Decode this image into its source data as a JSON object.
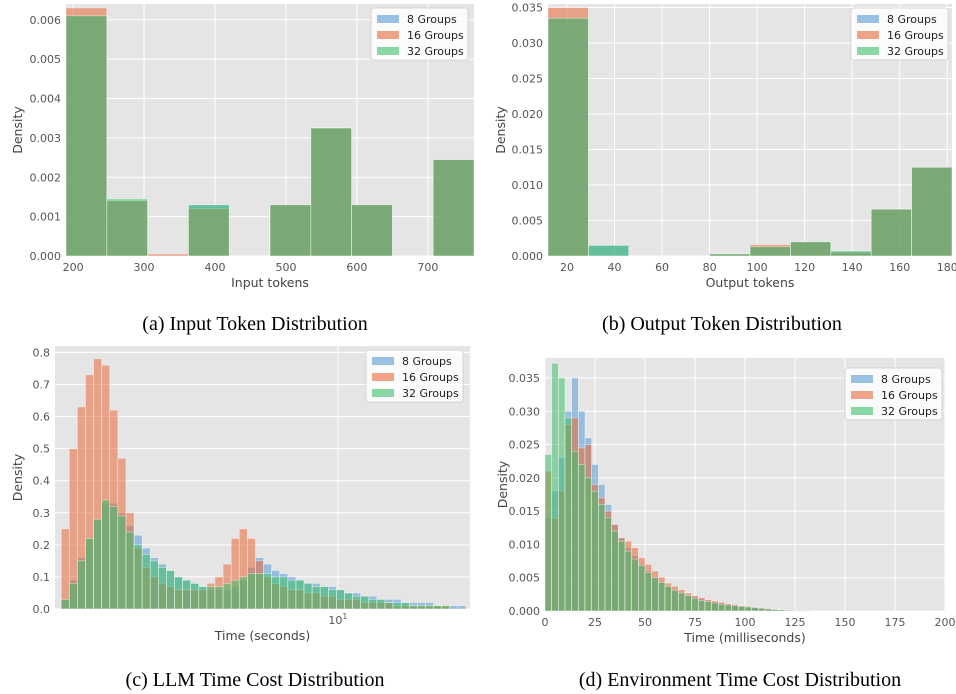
{
  "colors": {
    "panel_bg": "#e5e5e5",
    "grid": "#ffffff",
    "blue": "#5a9bd5",
    "orange": "#e8693a",
    "green": "#3fbf6c"
  },
  "legend": [
    "8 Groups",
    "16 Groups",
    "32 Groups"
  ],
  "chart_data": [
    {
      "type": "bar",
      "caption": "(a) Input Token Distribution",
      "xlabel": "Input tokens",
      "ylabel": "Density",
      "xlim": [
        190,
        765
      ],
      "ylim": [
        0,
        0.0064
      ],
      "xticks": [
        200,
        300,
        400,
        500,
        600,
        700
      ],
      "xtick_labels": [
        "200",
        "300",
        "400",
        "500",
        "600",
        "700"
      ],
      "yticks": [
        0,
        0.001,
        0.002,
        0.003,
        0.004,
        0.005,
        0.006
      ],
      "ytick_labels": [
        "0.000",
        "0.001",
        "0.002",
        "0.003",
        "0.004",
        "0.005",
        "0.006"
      ],
      "bins": [
        [
          190,
          247.5
        ],
        [
          247.5,
          305
        ],
        [
          305,
          362.5
        ],
        [
          362.5,
          420
        ],
        [
          420,
          477.5
        ],
        [
          477.5,
          535
        ],
        [
          535,
          592.5
        ],
        [
          592.5,
          650
        ],
        [
          650,
          707.5
        ],
        [
          707.5,
          765
        ]
      ],
      "series": [
        {
          "name": "8 Groups",
          "color": "blue",
          "values": [
            0.0061,
            0.0014,
            0.0,
            0.0013,
            0.0,
            0.0013,
            0.00325,
            0.0013,
            0.0,
            0.00245
          ]
        },
        {
          "name": "16 Groups",
          "color": "orange",
          "values": [
            0.0063,
            0.0014,
            5e-05,
            0.0012,
            0.0,
            0.0013,
            0.00325,
            0.0013,
            0.0,
            0.00245
          ]
        },
        {
          "name": "32 Groups",
          "color": "green",
          "values": [
            0.0061,
            0.00145,
            0.0,
            0.0013,
            0.0,
            0.0013,
            0.00325,
            0.0013,
            0.0,
            0.00245
          ]
        }
      ]
    },
    {
      "type": "bar",
      "caption": "(b) Output Token Distribution",
      "xlabel": "Output tokens",
      "ylabel": "Density",
      "xlim": [
        12,
        182
      ],
      "ylim": [
        0,
        0.0355
      ],
      "xticks": [
        20,
        40,
        60,
        80,
        100,
        120,
        140,
        160,
        180
      ],
      "xtick_labels": [
        "20",
        "40",
        "60",
        "80",
        "100",
        "120",
        "140",
        "160",
        "180"
      ],
      "yticks": [
        0,
        0.005,
        0.01,
        0.015,
        0.02,
        0.025,
        0.03,
        0.035
      ],
      "ytick_labels": [
        "0.000",
        "0.005",
        "0.010",
        "0.015",
        "0.020",
        "0.025",
        "0.030",
        "0.035"
      ],
      "bins": [
        [
          12,
          29
        ],
        [
          29,
          46
        ],
        [
          46,
          63
        ],
        [
          63,
          80
        ],
        [
          80,
          97
        ],
        [
          97,
          114
        ],
        [
          114,
          131
        ],
        [
          131,
          148
        ],
        [
          148,
          165
        ],
        [
          165,
          182
        ]
      ],
      "series": [
        {
          "name": "8 Groups",
          "color": "blue",
          "values": [
            0.0335,
            0.0015,
            0.0,
            0.0,
            0.0003,
            0.0013,
            0.002,
            0.0007,
            0.0066,
            0.0125
          ]
        },
        {
          "name": "16 Groups",
          "color": "orange",
          "values": [
            0.035,
            0.0,
            0.0,
            0.0,
            0.0003,
            0.0016,
            0.002,
            0.0005,
            0.0066,
            0.0125
          ]
        },
        {
          "name": "32 Groups",
          "color": "green",
          "values": [
            0.0335,
            0.0015,
            0.0,
            0.0,
            0.0003,
            0.0013,
            0.002,
            0.0007,
            0.0066,
            0.0125
          ]
        }
      ]
    },
    {
      "type": "bar",
      "caption": "(c) LLM Time Cost Distribution",
      "xlabel": "Time (seconds)",
      "ylabel": "Density",
      "xscale": "log",
      "xlim": [
        0.95,
        30
      ],
      "ylim": [
        0,
        0.82
      ],
      "xticks": [
        10
      ],
      "xtick_labels": [
        "10"
      ],
      "yticks": [
        0,
        0.1,
        0.2,
        0.3,
        0.4,
        0.5,
        0.6,
        0.7,
        0.8
      ],
      "ytick_labels": [
        "0.0",
        "0.1",
        "0.2",
        "0.3",
        "0.4",
        "0.5",
        "0.6",
        "0.7",
        "0.8"
      ],
      "nbins": 50,
      "bin_range": [
        1.0,
        29.0
      ],
      "series": [
        {
          "name": "8 Groups",
          "color": "blue",
          "values": [
            0.03,
            0.09,
            0.16,
            0.22,
            0.28,
            0.33,
            0.33,
            0.3,
            0.26,
            0.23,
            0.19,
            0.16,
            0.14,
            0.12,
            0.1,
            0.09,
            0.08,
            0.07,
            0.06,
            0.06,
            0.06,
            0.07,
            0.09,
            0.13,
            0.16,
            0.14,
            0.12,
            0.11,
            0.1,
            0.09,
            0.08,
            0.08,
            0.07,
            0.07,
            0.06,
            0.05,
            0.05,
            0.04,
            0.04,
            0.03,
            0.03,
            0.03,
            0.02,
            0.02,
            0.02,
            0.02,
            0.01,
            0.01,
            0.01,
            0.01
          ]
        },
        {
          "name": "16 Groups",
          "color": "orange",
          "values": [
            0.25,
            0.5,
            0.63,
            0.73,
            0.78,
            0.76,
            0.62,
            0.47,
            0.3,
            0.19,
            0.13,
            0.1,
            0.08,
            0.07,
            0.06,
            0.06,
            0.06,
            0.06,
            0.08,
            0.1,
            0.14,
            0.22,
            0.25,
            0.22,
            0.15,
            0.1,
            0.08,
            0.07,
            0.06,
            0.06,
            0.05,
            0.05,
            0.04,
            0.04,
            0.03,
            0.03,
            0.03,
            0.02,
            0.02,
            0.02,
            0.02,
            0.01,
            0.01,
            0.01,
            0.01,
            0.01,
            0.01,
            0.01,
            0.0,
            0.0
          ]
        },
        {
          "name": "32 Groups",
          "color": "green",
          "values": [
            0.03,
            0.08,
            0.15,
            0.22,
            0.28,
            0.34,
            0.32,
            0.29,
            0.24,
            0.2,
            0.17,
            0.15,
            0.13,
            0.12,
            0.1,
            0.09,
            0.08,
            0.07,
            0.07,
            0.07,
            0.08,
            0.09,
            0.1,
            0.11,
            0.11,
            0.11,
            0.1,
            0.1,
            0.09,
            0.09,
            0.08,
            0.07,
            0.07,
            0.06,
            0.06,
            0.05,
            0.04,
            0.04,
            0.03,
            0.03,
            0.02,
            0.02,
            0.02,
            0.01,
            0.01,
            0.01,
            0.01,
            0.01,
            0.0,
            0.0
          ]
        }
      ]
    },
    {
      "type": "bar",
      "caption": "(d) Environment Time Cost Distribution",
      "xlabel": "Time (milliseconds)",
      "ylabel": "Density",
      "xlim": [
        0,
        200
      ],
      "ylim": [
        0,
        0.038
      ],
      "xticks": [
        0,
        25,
        50,
        75,
        100,
        125,
        150,
        175,
        200
      ],
      "xtick_labels": [
        "0",
        "25",
        "50",
        "75",
        "100",
        "125",
        "150",
        "175",
        "200"
      ],
      "yticks": [
        0,
        0.005,
        0.01,
        0.015,
        0.02,
        0.025,
        0.03,
        0.035
      ],
      "ytick_labels": [
        "0.000",
        "0.005",
        "0.010",
        "0.015",
        "0.020",
        "0.025",
        "0.030",
        "0.035"
      ],
      "bin_width": 3.333,
      "series": [
        {
          "name": "8 Groups",
          "color": "blue",
          "values": [
            0.014,
            0.018,
            0.023,
            0.03,
            0.035,
            0.03,
            0.026,
            0.022,
            0.019,
            0.016,
            0.013,
            0.011,
            0.0095,
            0.0083,
            0.007,
            0.006,
            0.0051,
            0.0044,
            0.0038,
            0.0032,
            0.0028,
            0.0024,
            0.0021,
            0.0018,
            0.0016,
            0.0014,
            0.0012,
            0.001,
            0.0009,
            0.0008,
            0.0007,
            0.0006,
            0.0005,
            0.0004,
            0.0003,
            0.0002,
            0.0002,
            0.0001,
            0.0001,
            0.0001,
            0.0,
            0.0,
            0.0,
            0.0,
            0.0,
            0.0,
            0.0,
            0.0,
            0.0,
            0.0,
            0.0,
            0.0,
            0.0,
            0.0,
            0.0,
            0.0,
            0.0,
            0.0,
            0.0,
            0.0
          ]
        },
        {
          "name": "16 Groups",
          "color": "orange",
          "values": [
            0.021,
            0.014,
            0.018,
            0.028,
            0.029,
            0.0245,
            0.025,
            0.019,
            0.017,
            0.015,
            0.013,
            0.011,
            0.0105,
            0.0095,
            0.008,
            0.007,
            0.006,
            0.0051,
            0.0042,
            0.0037,
            0.0032,
            0.0027,
            0.0023,
            0.002,
            0.0017,
            0.0015,
            0.0013,
            0.0011,
            0.001,
            0.0008,
            0.0007,
            0.0006,
            0.0005,
            0.0004,
            0.0003,
            0.0002,
            0.0002,
            0.0001,
            0.0001,
            0.0001,
            0.0,
            0.0,
            0.0,
            0.0,
            0.0,
            0.0,
            0.0,
            0.0,
            0.0,
            0.0,
            0.0,
            0.0,
            0.0,
            0.0,
            0.0,
            0.0,
            0.0,
            0.0,
            0.0,
            0.0
          ]
        },
        {
          "name": "32 Groups",
          "color": "green",
          "values": [
            0.0235,
            0.0372,
            0.035,
            0.029,
            0.024,
            0.022,
            0.02,
            0.018,
            0.016,
            0.014,
            0.012,
            0.0105,
            0.009,
            0.0078,
            0.0068,
            0.0058,
            0.005,
            0.0043,
            0.0037,
            0.0031,
            0.0027,
            0.0023,
            0.0019,
            0.0016,
            0.0014,
            0.0012,
            0.001,
            0.0009,
            0.0008,
            0.0007,
            0.0006,
            0.0005,
            0.0004,
            0.0003,
            0.0002,
            0.0002,
            0.0001,
            0.0001,
            0.0001,
            0.0001,
            0.0,
            0.0,
            0.0,
            0.0,
            0.0,
            0.0,
            0.0,
            0.0,
            0.0,
            0.0,
            0.0,
            0.0,
            0.0,
            0.0,
            0.0,
            0.0,
            0.0,
            0.0,
            0.0,
            0.0
          ]
        }
      ]
    }
  ]
}
